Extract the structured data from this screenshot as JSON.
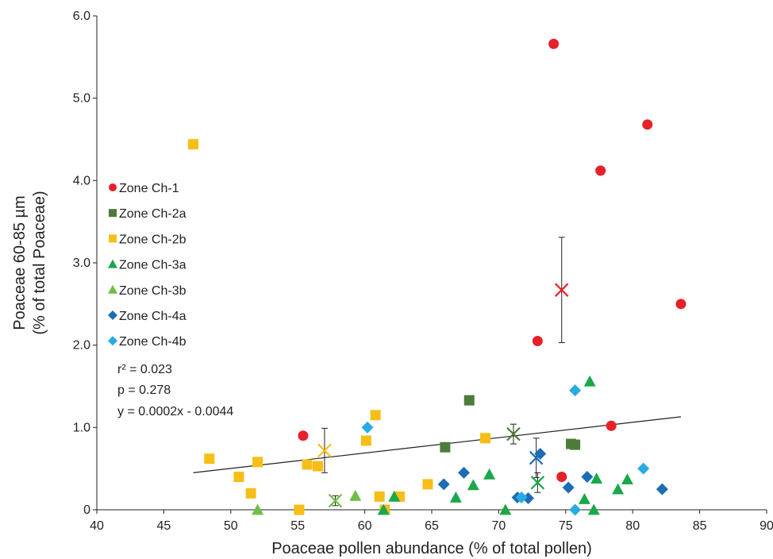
{
  "chart_data": {
    "type": "scatter",
    "xlabel": "Poaceae pollen abundance (% of total pollen)",
    "ylabel_lines": [
      "Poaceae 60-85 µm",
      "(% of total Poaceae)"
    ],
    "xlim": [
      40,
      90
    ],
    "ylim": [
      0,
      6
    ],
    "x_ticks": [
      "40",
      "45",
      "50",
      "55",
      "60",
      "65",
      "70",
      "75",
      "80",
      "85",
      "90"
    ],
    "y_ticks": [
      "0",
      "1.0",
      "2.0",
      "3.0",
      "4.0",
      "5.0",
      "6.0"
    ],
    "grid": false,
    "legend_position": "left",
    "series": [
      {
        "name": "Zone Ch-1",
        "color": "#e62129",
        "marker": "circle",
        "points": [
          [
            55.4,
            0.9
          ],
          [
            72.9,
            2.05
          ],
          [
            74.7,
            0.4
          ],
          [
            74.1,
            5.66
          ],
          [
            77.6,
            4.12
          ],
          [
            78.4,
            1.02
          ],
          [
            81.1,
            4.68
          ],
          [
            83.6,
            2.5
          ]
        ],
        "mean": {
          "x": 74.7,
          "y": 2.67,
          "err_low": 2.03,
          "err_high": 3.31
        }
      },
      {
        "name": "Zone Ch-2a",
        "color": "#4d7b3a",
        "marker": "square",
        "points": [
          [
            66,
            0.76
          ],
          [
            67.8,
            1.33
          ],
          [
            75.4,
            0.8
          ],
          [
            75.7,
            0.79
          ]
        ],
        "mean": {
          "x": 71.1,
          "y": 0.92,
          "err_low": 0.8,
          "err_high": 1.04
        }
      },
      {
        "name": "Zone Ch-2b",
        "color": "#f6be16",
        "marker": "square",
        "points": [
          [
            47.2,
            4.44
          ],
          [
            48.4,
            0.62
          ],
          [
            50.6,
            0.4
          ],
          [
            51.5,
            0.2
          ],
          [
            52,
            0.58
          ],
          [
            55.1,
            0
          ],
          [
            55.7,
            0.55
          ],
          [
            56.5,
            0.53
          ],
          [
            60.1,
            0.84
          ],
          [
            60.8,
            1.15
          ],
          [
            61.1,
            0.16
          ],
          [
            61.5,
            0
          ],
          [
            62.6,
            0.16
          ],
          [
            64.7,
            0.31
          ],
          [
            69,
            0.87
          ]
        ],
        "mean": {
          "x": 57,
          "y": 0.72,
          "err_low": 0.45,
          "err_high": 0.99
        }
      },
      {
        "name": "Zone Ch-3a",
        "color": "#1ba84a",
        "marker": "triangle",
        "points": [
          [
            61.4,
            0
          ],
          [
            62.2,
            0.16
          ],
          [
            66.8,
            0.15
          ],
          [
            68.1,
            0.3
          ],
          [
            69.3,
            0.43
          ],
          [
            70.5,
            0
          ],
          [
            76.4,
            0.13
          ],
          [
            77.1,
            0
          ],
          [
            77.3,
            0.38
          ],
          [
            76.8,
            1.56
          ],
          [
            78.9,
            0.25
          ],
          [
            79.6,
            0.37
          ]
        ],
        "mean": {
          "x": 72.9,
          "y": 0.33,
          "err_low": 0.21,
          "err_high": 0.45
        }
      },
      {
        "name": "Zone Ch-3b",
        "color": "#6ebf45",
        "marker": "triangle",
        "points": [
          [
            52,
            0
          ],
          [
            59.3,
            0.17
          ]
        ],
        "mean": {
          "x": 57.8,
          "y": 0.11,
          "err_low": 0.05,
          "err_high": 0.17
        }
      },
      {
        "name": "Zone Ch-4a",
        "color": "#1c6db5",
        "marker": "diamond",
        "points": [
          [
            65.9,
            0.31
          ],
          [
            67.4,
            0.45
          ],
          [
            71.4,
            0.15
          ],
          [
            72.2,
            0.14
          ],
          [
            73.1,
            0.68
          ],
          [
            75.2,
            0.27
          ],
          [
            76.6,
            0.4
          ],
          [
            82.2,
            0.25
          ]
        ],
        "mean": {
          "x": 72.8,
          "y": 0.63,
          "err_low": 0.39,
          "err_high": 0.87
        }
      },
      {
        "name": "Zone Ch-4b",
        "color": "#29abe2",
        "marker": "diamond",
        "points": [
          [
            60.2,
            1.0
          ],
          [
            71.7,
            0.15
          ],
          [
            75.7,
            1.45
          ],
          [
            75.7,
            0
          ],
          [
            80.8,
            0.5
          ]
        ],
        "mean": null
      }
    ],
    "regression_line": {
      "x": [
        47.2,
        83.6
      ],
      "y": [
        0.45,
        1.13
      ]
    },
    "annotations": [
      "r² = 0.023",
      "p = 0.278",
      "y = 0.0002x - 0.0044"
    ]
  }
}
